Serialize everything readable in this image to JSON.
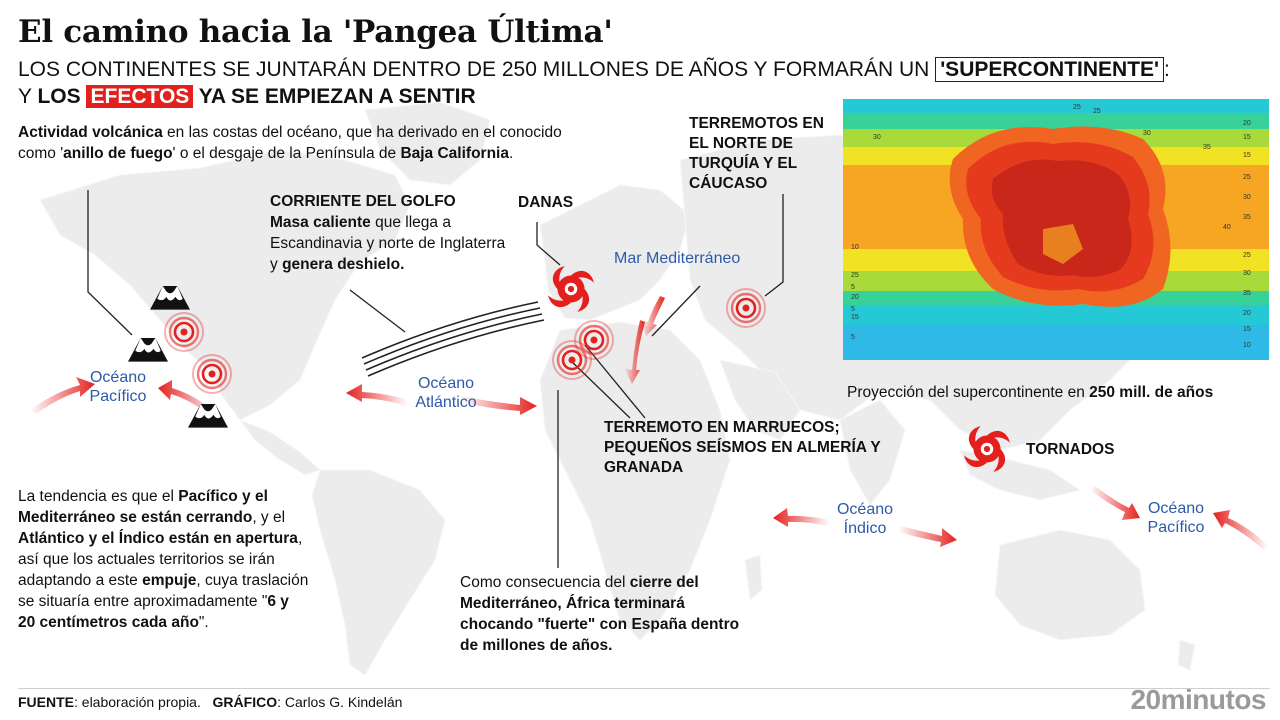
{
  "title": "El camino hacia la 'Pangea Última'",
  "subtitle": {
    "l1_a": "LOS CONTINENTES SE JUNTARÁN DENTRO DE 250 MILLONES DE AÑOS Y FORMARÁN UN ",
    "l1_box": "'SUPERCONTINENTE'",
    "l1_b": ":",
    "l2_a": "Y ",
    "l2_bold": "LOS ",
    "l2_hl": "EFECTOS",
    "l2_c": " YA SE EMPIEZAN A SENTIR"
  },
  "volcanic": {
    "b1": "Actividad volcánica",
    "t1": " en las costas del océano, que ha derivado en el conocido como '",
    "b2": "anillo de fuego",
    "t2": "' o el desgaje de la Península de ",
    "b3": "Baja California",
    "t3": "."
  },
  "gulf": {
    "heading": "CORRIENTE DEL GOLFO",
    "b1": "Masa caliente",
    "t1": " que llega a Escandinavia y norte de Inglaterra y ",
    "b2": "genera deshielo."
  },
  "danas": "DANAS",
  "mediterranean_sea": "Mar Mediterráneo",
  "turkey": "TERREMOTOS EN EL NORTE DE TURQUÍA Y EL CÁUCASO",
  "morocco": "TERREMOTO EN MARRUECOS; PEQUEÑOS SEÍSMOS EN ALMERÍA Y GRANADA",
  "tornados": "TORNADOS",
  "oceans": {
    "pacific_left": "Océano Pacífico",
    "atlantic": "Océano Atlántico",
    "indian": "Océano Índico",
    "pacific_right": "Océano Pacífico"
  },
  "trend": {
    "t1": "La tendencia es que el ",
    "b1": "Pacífico y el Mediterráneo se están cerrando",
    "t2": ", y el ",
    "b2": "Atlántico y el Índico están en apertura",
    "t3": ", así que los actuales territorios se irán adaptando a este ",
    "b3": "empuje",
    "t4": ", cuya traslación se situaría entre aproximadamente \"",
    "b4": "6 y 20 centímetros cada año",
    "t5": "\"."
  },
  "africa": {
    "t1": "Como consecuencia del ",
    "b1": "cierre del Mediterráneo, África terminará chocando \"fuerte\" con España dentro de millones de años."
  },
  "supercontinent": {
    "caption": "Proyección del supercontinente en ",
    "caption_bold": "250 mill. de años",
    "contour_labels": [
      "25",
      "25",
      "30",
      "30",
      "35",
      "20",
      "15",
      "15",
      "25",
      "30",
      "35",
      "40",
      "10",
      "5",
      "5",
      "25",
      "30",
      "35",
      "25",
      "20",
      "15",
      "20",
      "15",
      "5",
      "10"
    ]
  },
  "footer": {
    "source_label": "FUENTE",
    "source_text": ": elaboración propia.",
    "graphic_label": "GRÁFICO",
    "graphic_text": ": Carlos G. Kindelán"
  },
  "logo": "20minutos",
  "colors": {
    "accent_red": "#e4201e",
    "ocean_label_blue": "#2d5aa8",
    "map_land": "#ececec"
  }
}
